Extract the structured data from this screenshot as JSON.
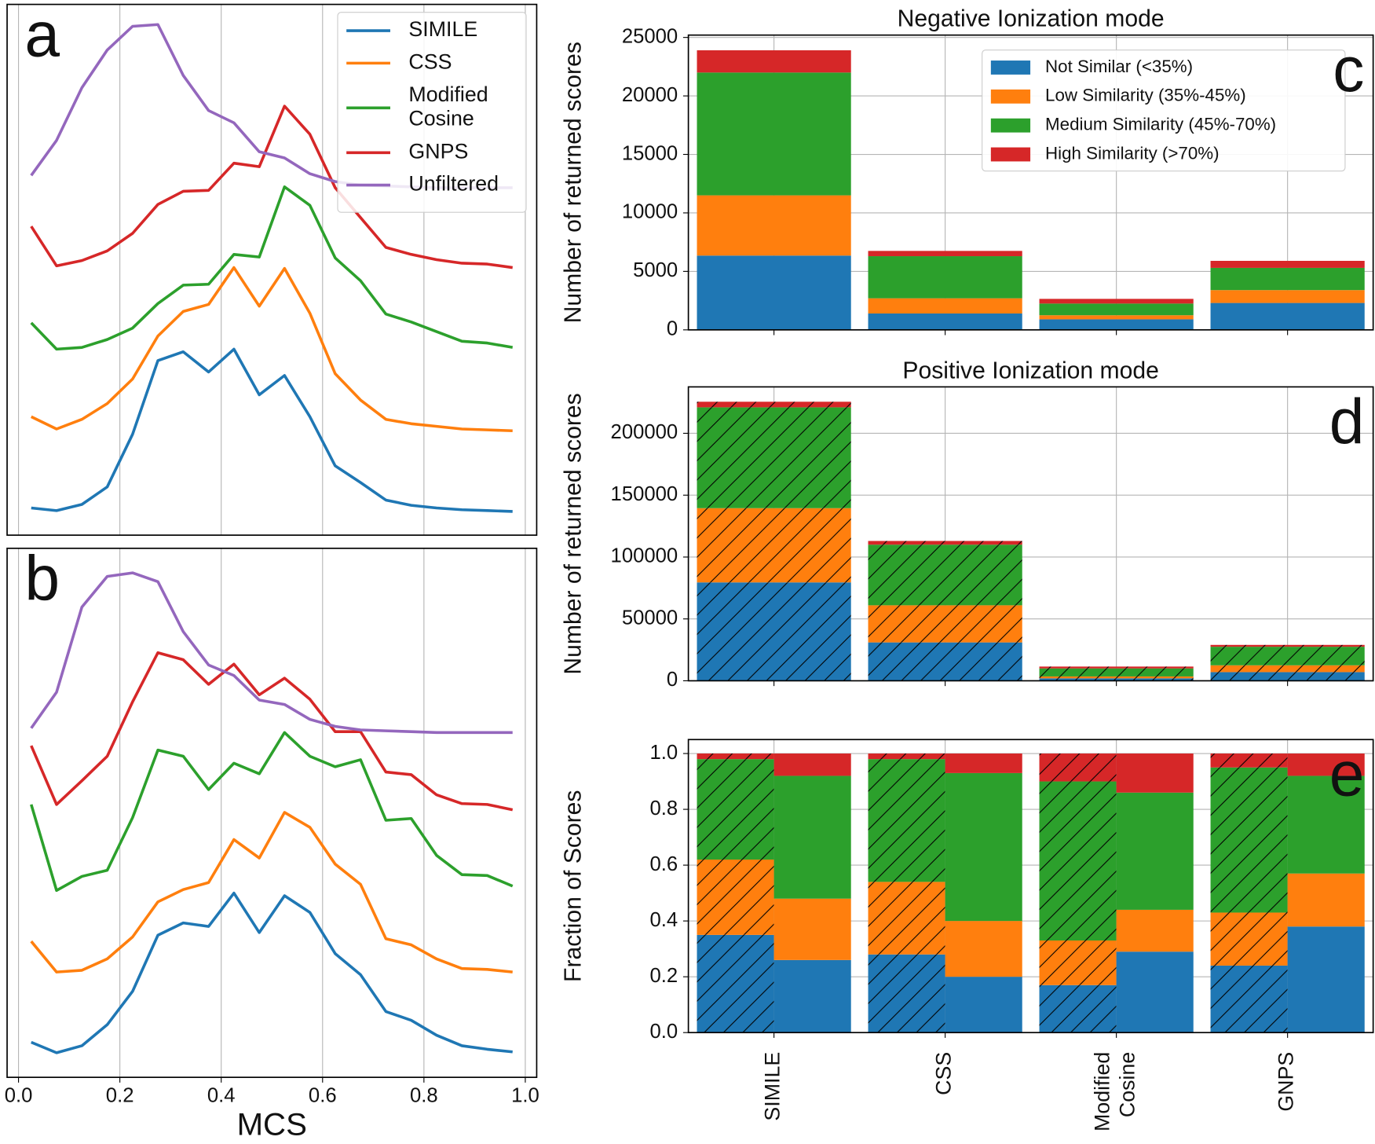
{
  "chart_data": [
    {
      "type": "line",
      "annotation": "a",
      "x": [
        0.025,
        0.075,
        0.125,
        0.175,
        0.225,
        0.275,
        0.325,
        0.375,
        0.425,
        0.475,
        0.525,
        0.575,
        0.625,
        0.675,
        0.725,
        0.775,
        0.825,
        0.875,
        0.925,
        0.975
      ],
      "series": [
        {
          "name": "SIMILE",
          "color": "#1f77b4",
          "values": [
            31,
            28,
            35,
            55,
            115,
            199,
            209,
            186,
            212,
            160,
            182,
            135,
            79,
            60,
            40,
            34,
            31,
            29,
            28,
            27
          ]
        },
        {
          "name": "CSS",
          "color": "#ff7f0e",
          "values": [
            135,
            121,
            132,
            150,
            178,
            227,
            255,
            263,
            305,
            261,
            304,
            253,
            184,
            154,
            132,
            127,
            124,
            121,
            120,
            119
          ]
        },
        {
          "name": "Modified Cosine",
          "color": "#2ca02c",
          "values": [
            242,
            212,
            214,
            223,
            236,
            264,
            285,
            286,
            320,
            317,
            397,
            376,
            316,
            290,
            252,
            243,
            232,
            221,
            219,
            214
          ]
        },
        {
          "name": "GNPS",
          "color": "#d62728",
          "values": [
            352,
            307,
            313,
            324,
            344,
            377,
            392,
            393,
            424,
            420,
            489,
            457,
            396,
            362,
            328,
            320,
            314,
            310,
            309,
            305
          ]
        },
        {
          "name": "Unfiltered",
          "color": "#9467bd",
          "values": [
            410,
            450,
            510,
            553,
            580,
            582,
            524,
            484,
            470,
            437,
            430,
            412,
            403,
            399,
            398,
            397,
            396,
            396,
            396,
            396
          ]
        }
      ],
      "xlim": [
        -0.0225,
        1.0225
      ],
      "xticks": [
        0,
        0.2,
        0.4,
        0.6,
        0.8,
        1
      ],
      "ylim": [
        0,
        605
      ],
      "grid": true,
      "legend": "upper right"
    },
    {
      "type": "line",
      "annotation": "b",
      "xlabel": "MCS",
      "x": [
        0.025,
        0.075,
        0.125,
        0.175,
        0.225,
        0.275,
        0.325,
        0.375,
        0.425,
        0.475,
        0.525,
        0.575,
        0.625,
        0.675,
        0.725,
        0.775,
        0.825,
        0.875,
        0.925,
        0.975
      ],
      "series": [
        {
          "color": "#1f77b4",
          "values": [
            40,
            28,
            36,
            60,
            98,
            162,
            176,
            172,
            210,
            165,
            207,
            188,
            141,
            117,
            75,
            65,
            48,
            36,
            32,
            29
          ]
        },
        {
          "color": "#ff7f0e",
          "values": [
            155,
            120,
            122,
            135,
            160,
            200,
            214,
            222,
            271,
            250,
            302,
            285,
            243,
            220,
            158,
            151,
            135,
            124,
            123,
            120
          ]
        },
        {
          "color": "#2ca02c",
          "values": [
            311,
            213,
            229,
            236,
            296,
            373,
            366,
            328,
            358,
            346,
            393,
            366,
            354,
            362,
            293,
            295,
            253,
            231,
            230,
            218
          ]
        },
        {
          "color": "#d62728",
          "values": [
            378,
            311,
            338,
            366,
            428,
            484,
            476,
            448,
            471,
            436,
            455,
            431,
            394,
            394,
            348,
            345,
            322,
            312,
            311,
            305
          ]
        },
        {
          "color": "#9467bd",
          "values": [
            398,
            439,
            536,
            571,
            575,
            565,
            508,
            470,
            458,
            430,
            425,
            408,
            400,
            396,
            395,
            394,
            393,
            393,
            393,
            393
          ]
        }
      ],
      "xlim": [
        -0.0225,
        1.0225
      ],
      "xticks": [
        {
          "value": 0,
          "label": "0.0"
        },
        0.2,
        0.4,
        0.6,
        0.8,
        {
          "value": 1,
          "label": "1.0"
        }
      ],
      "ylim": [
        0,
        603
      ],
      "grid": true
    },
    {
      "type": "bar",
      "stacked": true,
      "annotation": "c",
      "title": "Negative Ionization mode",
      "ylabel": "Number of returned scores",
      "series": [
        {
          "name": "Not Similar (<35%)",
          "color": "#1f77b4",
          "values": [
            6350,
            1400,
            900,
            2300
          ]
        },
        {
          "name": "Low Similarity (35%-45%)",
          "color": "#ff7f0e",
          "values": [
            5150,
            1300,
            350,
            1100
          ]
        },
        {
          "name": "Medium Similarity (45%-70%)",
          "color": "#2ca02c",
          "values": [
            10500,
            3600,
            1000,
            1900
          ]
        },
        {
          "name": "High Similarity (>70%)",
          "color": "#d62728",
          "values": [
            1900,
            450,
            400,
            600
          ]
        }
      ],
      "ylim": [
        0,
        25200
      ],
      "yticks": [
        0,
        5000,
        10000,
        15000,
        20000,
        25000
      ],
      "grid": true,
      "legend": "upper right"
    },
    {
      "type": "bar",
      "stacked": true,
      "hatch": true,
      "annotation": "d",
      "title": "Positive Ionization mode",
      "ylabel": "Number of returned scores",
      "series": [
        {
          "color": "#1f77b4",
          "values": [
            79500,
            31000,
            2000,
            7000
          ]
        },
        {
          "color": "#ff7f0e",
          "values": [
            60000,
            30000,
            1500,
            5500
          ]
        },
        {
          "color": "#2ca02c",
          "values": [
            81500,
            49000,
            6500,
            15000
          ]
        },
        {
          "color": "#d62728",
          "values": [
            4500,
            3000,
            1500,
            1500
          ]
        }
      ],
      "ylim": [
        0,
        237500
      ],
      "yticks": [
        0,
        50000,
        100000,
        150000,
        200000
      ],
      "grid": true
    },
    {
      "type": "bar",
      "stacked": true,
      "annotation": "e",
      "ylabel": "Fraction of Scores",
      "categories": [
        "SIMILE",
        "CSS",
        "Modified Cosine",
        "GNPS"
      ],
      "groups": [
        {
          "hatch": true,
          "series": [
            {
              "color": "#1f77b4",
              "values": [
                0.35,
                0.28,
                0.17,
                0.24
              ]
            },
            {
              "color": "#ff7f0e",
              "values": [
                0.27,
                0.26,
                0.16,
                0.19
              ]
            },
            {
              "color": "#2ca02c",
              "values": [
                0.36,
                0.44,
                0.57,
                0.52
              ]
            },
            {
              "color": "#d62728",
              "values": [
                0.02,
                0.02,
                0.1,
                0.05
              ]
            }
          ]
        },
        {
          "hatch": false,
          "series": [
            {
              "color": "#1f77b4",
              "values": [
                0.26,
                0.2,
                0.29,
                0.38
              ]
            },
            {
              "color": "#ff7f0e",
              "values": [
                0.22,
                0.2,
                0.15,
                0.19
              ]
            },
            {
              "color": "#2ca02c",
              "values": [
                0.44,
                0.53,
                0.42,
                0.35
              ]
            },
            {
              "color": "#d62728",
              "values": [
                0.08,
                0.07,
                0.14,
                0.08
              ]
            }
          ]
        }
      ],
      "ylim": [
        0,
        1.05
      ],
      "yticks": [
        {
          "value": 0,
          "label": "0.0"
        },
        0.2,
        0.4,
        0.6,
        0.8,
        {
          "value": 1,
          "label": "1.0"
        }
      ],
      "grid": true
    }
  ]
}
